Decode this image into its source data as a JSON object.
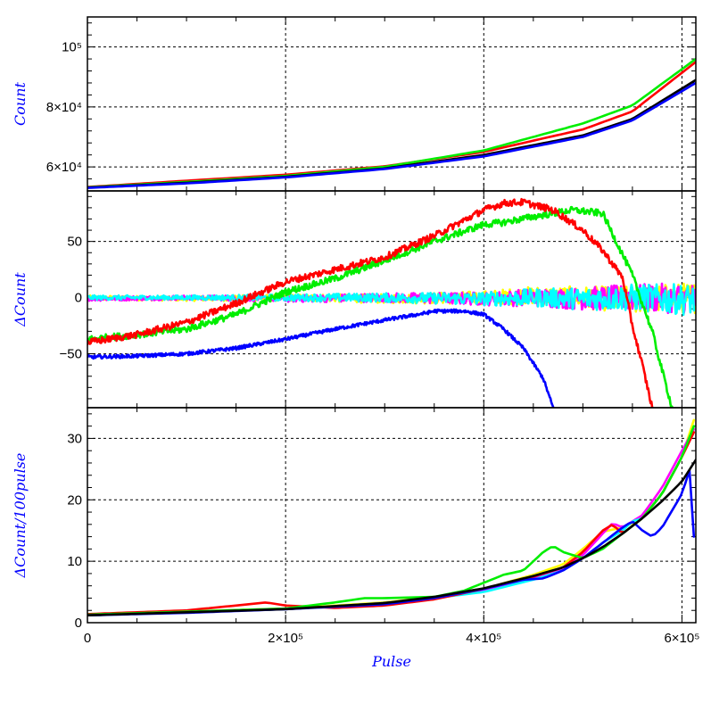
{
  "chart_data": [
    {
      "type": "line",
      "ylabel": "Count",
      "xlim": [
        0,
        614000
      ],
      "ylim": [
        52000,
        110000
      ],
      "yticks": [
        {
          "value": 60000,
          "label": "6×10⁴"
        },
        {
          "value": 80000,
          "label": "8×10⁴"
        },
        {
          "value": 100000,
          "label": "10⁵"
        }
      ],
      "grid": true,
      "series": [
        {
          "color": "#ff0000",
          "x": [
            0,
            100000,
            200000,
            300000,
            400000,
            500000,
            550000,
            614000
          ],
          "y": [
            53300,
            55400,
            57400,
            60200,
            65000,
            72500,
            78500,
            95000
          ]
        },
        {
          "color": "#00ee00",
          "x": [
            0,
            100000,
            200000,
            300000,
            400000,
            500000,
            550000,
            614000
          ],
          "y": [
            53200,
            55000,
            57000,
            60000,
            65500,
            74500,
            80500,
            96000
          ]
        },
        {
          "color": "#000000",
          "x": [
            0,
            100000,
            200000,
            300000,
            400000,
            500000,
            550000,
            614000
          ],
          "y": [
            53100,
            54700,
            56700,
            59500,
            64000,
            70500,
            76000,
            89000
          ]
        },
        {
          "color": "#0000ff",
          "x": [
            0,
            100000,
            200000,
            300000,
            400000,
            500000,
            550000,
            614000
          ],
          "y": [
            53000,
            54500,
            56500,
            59300,
            63500,
            70000,
            75500,
            88000
          ]
        }
      ]
    },
    {
      "type": "line",
      "ylabel": "ΔCount",
      "xlim": [
        0,
        614000
      ],
      "ylim": [
        -98,
        95
      ],
      "yticks": [
        {
          "value": -50,
          "label": "−50"
        },
        {
          "value": 0,
          "label": "0"
        },
        {
          "value": 50,
          "label": "50"
        }
      ],
      "grid": true,
      "series": [
        {
          "color": "#ffff00",
          "x": [
            0,
            100000,
            200000,
            300000,
            400000,
            450000,
            500000,
            550000,
            614000
          ],
          "y": [
            0,
            -1,
            0,
            -1,
            0,
            2,
            0,
            -2,
            0
          ],
          "noise": [
            2,
            2,
            3,
            4,
            6,
            8,
            10,
            12,
            14
          ]
        },
        {
          "color": "#ff00ff",
          "x": [
            0,
            100000,
            200000,
            300000,
            400000,
            450000,
            500000,
            550000,
            614000
          ],
          "y": [
            -1,
            0,
            -1,
            0,
            -1,
            0,
            -1,
            0,
            -1
          ],
          "noise": [
            2,
            2,
            3,
            4,
            6,
            8,
            10,
            12,
            14
          ]
        },
        {
          "color": "#00ffff",
          "x": [
            0,
            100000,
            200000,
            300000,
            400000,
            450000,
            500000,
            550000,
            612000
          ],
          "y": [
            0,
            0,
            0,
            0,
            -1,
            0,
            -1,
            0,
            -2
          ],
          "noise": [
            2,
            2,
            3,
            4,
            6,
            8,
            10,
            12,
            14
          ]
        },
        {
          "color": "#0000ff",
          "x": [
            0,
            50000,
            100000,
            150000,
            200000,
            250000,
            300000,
            340000,
            350000,
            380000,
            400000,
            420000,
            440000,
            460000,
            470000
          ],
          "y": [
            -53,
            -52,
            -50,
            -45,
            -37,
            -28,
            -20,
            -14,
            -12,
            -12,
            -15,
            -28,
            -45,
            -72,
            -98
          ],
          "noise": 1.5
        },
        {
          "color": "#00ee00",
          "x": [
            0,
            50000,
            100000,
            150000,
            200000,
            250000,
            300000,
            350000,
            400000,
            420000,
            450000,
            470000,
            490000,
            520000,
            550000,
            570000,
            580000,
            590000
          ],
          "y": [
            -37,
            -33,
            -28,
            -15,
            5,
            17,
            33,
            50,
            65,
            67,
            72,
            75,
            78,
            75,
            20,
            -30,
            -65,
            -98
          ],
          "noise": 3
        },
        {
          "color": "#ff0000",
          "x": [
            0,
            50000,
            100000,
            150000,
            200000,
            250000,
            300000,
            350000,
            400000,
            420000,
            440000,
            470000,
            500000,
            520000,
            540000,
            550000,
            560000,
            570000
          ],
          "y": [
            -40,
            -33,
            -22,
            -5,
            14,
            25,
            36,
            55,
            78,
            84,
            85,
            78,
            60,
            42,
            18,
            -25,
            -60,
            -98
          ],
          "noise": 3
        }
      ]
    },
    {
      "type": "line",
      "xlabel": "Pulse",
      "ylabel": "ΔCount/100pulse",
      "xlim": [
        0,
        614000
      ],
      "ylim": [
        0,
        35
      ],
      "xticks": [
        {
          "value": 0,
          "label": "0"
        },
        {
          "value": 200000,
          "label": "2×10⁵"
        },
        {
          "value": 400000,
          "label": "4×10⁵"
        },
        {
          "value": 600000,
          "label": "6×10⁵"
        }
      ],
      "yticks": [
        {
          "value": 0,
          "label": "0"
        },
        {
          "value": 10,
          "label": "10"
        },
        {
          "value": 20,
          "label": "20"
        },
        {
          "value": 30,
          "label": "30"
        }
      ],
      "grid": true,
      "series": [
        {
          "color": "#ffff00",
          "x": [
            0,
            100000,
            200000,
            300000,
            350000,
            400000,
            450000,
            480000,
            500000,
            520000,
            540000,
            560000,
            580000,
            600000,
            612000
          ],
          "y": [
            1.3,
            1.8,
            2.3,
            3.3,
            4.2,
            5.5,
            7.8,
            9.5,
            12,
            14.8,
            15.5,
            17,
            21,
            27,
            33
          ]
        },
        {
          "color": "#ff00ff",
          "x": [
            0,
            100000,
            200000,
            300000,
            350000,
            400000,
            450000,
            480000,
            500000,
            520000,
            530000,
            540000,
            560000,
            580000,
            600000,
            612000
          ],
          "y": [
            1.2,
            1.7,
            2.2,
            3.2,
            4,
            5.2,
            7.2,
            8.8,
            11,
            14.5,
            16.2,
            15.5,
            17.5,
            22,
            28,
            31.5
          ]
        },
        {
          "color": "#00ffff",
          "x": [
            0,
            100000,
            200000,
            300000,
            350000,
            400000,
            450000,
            480000,
            500000,
            520000,
            540000,
            550000,
            560000,
            580000,
            600000,
            612000
          ],
          "y": [
            1.2,
            1.7,
            2.2,
            3.2,
            4,
            5,
            7,
            8.5,
            10.5,
            13,
            15,
            16.5,
            17,
            21,
            27,
            32
          ]
        },
        {
          "color": "#ff0000",
          "x": [
            0,
            100000,
            150000,
            180000,
            200000,
            250000,
            300000,
            350000,
            400000,
            450000,
            480000,
            500000,
            520000,
            530000,
            540000,
            560000,
            580000,
            600000,
            612000
          ],
          "y": [
            1.4,
            2,
            2.8,
            3.3,
            2.8,
            2.4,
            2.8,
            3.8,
            5.5,
            7.5,
            9,
            11.5,
            15,
            16,
            14.5,
            17,
            21,
            27,
            31
          ]
        },
        {
          "color": "#00ee00",
          "x": [
            0,
            100000,
            200000,
            250000,
            280000,
            300000,
            350000,
            380000,
            400000,
            420000,
            440000,
            460000,
            470000,
            480000,
            500000,
            520000,
            540000,
            560000,
            580000,
            600000,
            612000
          ],
          "y": [
            1.3,
            1.8,
            2.3,
            3.3,
            4,
            4,
            4.2,
            5.2,
            6.5,
            7.8,
            8.5,
            11.5,
            12.5,
            11.5,
            10.5,
            12,
            14.5,
            17,
            21,
            27,
            32
          ]
        },
        {
          "color": "#0000ff",
          "x": [
            0,
            100000,
            200000,
            300000,
            350000,
            400000,
            440000,
            460000,
            480000,
            500000,
            520000,
            540000,
            550000,
            560000,
            570000,
            580000,
            600000,
            610000,
            612000
          ],
          "y": [
            1.2,
            1.6,
            2.2,
            3,
            4,
            5.5,
            7,
            7.2,
            8.5,
            10.5,
            13,
            15.5,
            16.5,
            15,
            14,
            15.5,
            21,
            26,
            14
          ]
        },
        {
          "color": "#000000",
          "x": [
            0,
            100000,
            200000,
            300000,
            350000,
            400000,
            450000,
            480000,
            500000,
            520000,
            540000,
            560000,
            580000,
            600000,
            614000
          ],
          "y": [
            1.2,
            1.7,
            2.2,
            3.2,
            4.2,
            5.6,
            7.6,
            9,
            10.5,
            12.3,
            14.5,
            17,
            19.8,
            23,
            26.5
          ]
        }
      ]
    }
  ]
}
